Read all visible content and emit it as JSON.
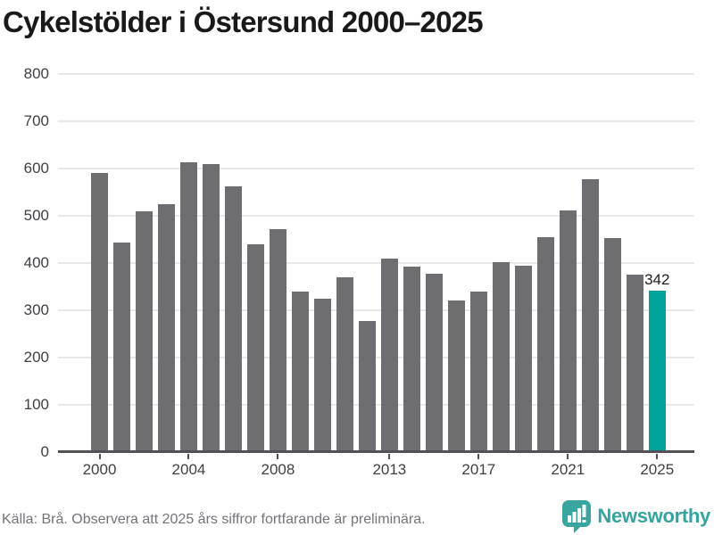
{
  "chart_data": {
    "type": "bar",
    "title": "Cykelstölder i Östersund 2000–2025",
    "categories": [
      2000,
      2001,
      2002,
      2003,
      2004,
      2005,
      2006,
      2007,
      2008,
      2009,
      2010,
      2011,
      2012,
      2013,
      2014,
      2015,
      2016,
      2017,
      2018,
      2019,
      2020,
      2021,
      2022,
      2023,
      2024,
      2025
    ],
    "values": [
      591,
      444,
      509,
      525,
      613,
      610,
      562,
      440,
      472,
      339,
      324,
      370,
      278,
      410,
      392,
      378,
      320,
      339,
      403,
      394,
      455,
      512,
      578,
      453,
      375,
      342
    ],
    "highlight_index": 25,
    "highlight_value_label": "342",
    "bar_color": "#6d6d72",
    "highlight_color": "#00a49c",
    "ylim": [
      0,
      800
    ],
    "yticks": [
      0,
      100,
      200,
      300,
      400,
      500,
      600,
      700,
      800
    ],
    "xticks": [
      2000,
      2004,
      2008,
      2013,
      2017,
      2021,
      2025
    ],
    "grid": "horizontal",
    "legend": "none",
    "xlabel": "",
    "ylabel": ""
  },
  "footer": {
    "source": "Källa: Brå. Observera att 2025 års siffror fortfarande är preliminära.",
    "brand": "Newsworthy"
  },
  "colors": {
    "bar": "#6d6d72",
    "highlight": "#00a49c",
    "brand_teal": "#35a49e",
    "gridline": "#e8e8e8",
    "axis": "#515156"
  }
}
